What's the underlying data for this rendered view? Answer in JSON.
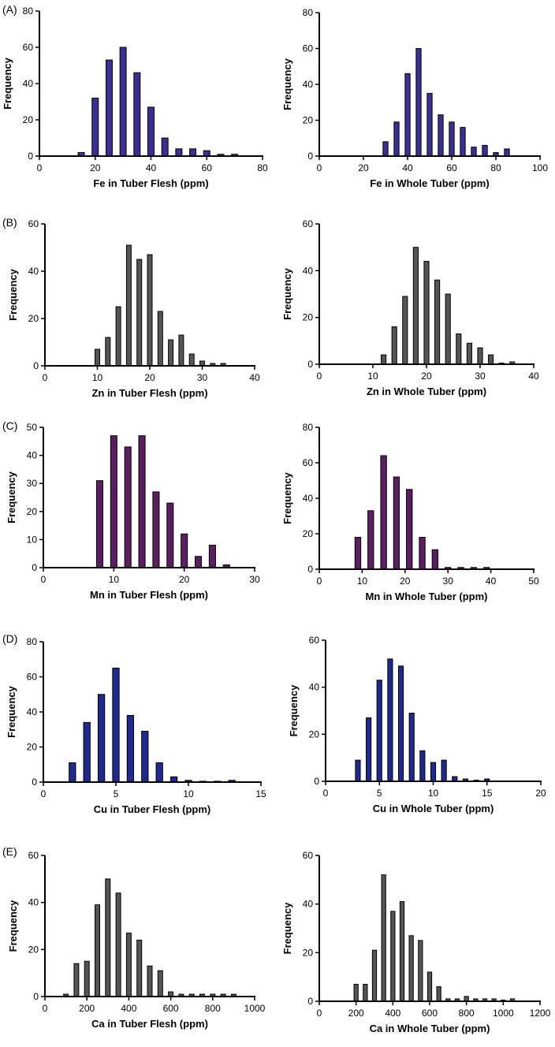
{
  "panel_labels": [
    "(A)",
    "(B)",
    "(C)",
    "(D)",
    "(E)"
  ],
  "colors": {
    "purple_blue": "#3b2f8f",
    "gray": "#555555",
    "purple": "#5a1f5e",
    "blue": "#1f2a8c",
    "axis": "#000000"
  },
  "chart_data": [
    {
      "type": "bar",
      "title": "",
      "xlabel": "Fe in Tuber Flesh (ppm)",
      "ylabel": "Frequency",
      "xlim": [
        0,
        80
      ],
      "ylim": [
        0,
        80
      ],
      "xticks": [
        0,
        20,
        40,
        60,
        80
      ],
      "yticks": [
        0,
        20,
        40,
        60,
        80
      ],
      "bin_width": 5,
      "color": "#3b2f8f",
      "x": [
        15,
        20,
        25,
        30,
        35,
        40,
        45,
        50,
        55,
        60,
        65,
        70
      ],
      "values": [
        2,
        32,
        53,
        60,
        46,
        27,
        10,
        4,
        4,
        3,
        1,
        1
      ]
    },
    {
      "type": "bar",
      "title": "",
      "xlabel": "Fe in Whole Tuber (ppm)",
      "ylabel": "Frequency",
      "xlim": [
        0,
        100
      ],
      "ylim": [
        0,
        80
      ],
      "xticks": [
        0,
        20,
        40,
        60,
        80,
        100
      ],
      "yticks": [
        0,
        20,
        40,
        60,
        80
      ],
      "bin_width": 5,
      "color": "#3b2f8f",
      "x": [
        30,
        35,
        40,
        45,
        50,
        55,
        60,
        65,
        70,
        75,
        80,
        85
      ],
      "values": [
        8,
        19,
        46,
        60,
        35,
        23,
        19,
        16,
        5,
        6,
        2,
        4
      ]
    },
    {
      "type": "bar",
      "title": "",
      "xlabel": "Zn in Tuber Flesh (ppm)",
      "ylabel": "Frequency",
      "xlim": [
        0,
        40
      ],
      "ylim": [
        0,
        60
      ],
      "xticks": [
        0,
        10,
        20,
        30,
        40
      ],
      "yticks": [
        0,
        20,
        40,
        60
      ],
      "bin_width": 2,
      "color": "#555555",
      "x": [
        10,
        12,
        14,
        16,
        18,
        20,
        22,
        24,
        26,
        28,
        30,
        32,
        34
      ],
      "values": [
        7,
        12,
        25,
        51,
        45,
        47,
        23,
        11,
        13,
        5,
        2,
        1,
        1
      ]
    },
    {
      "type": "bar",
      "title": "",
      "xlabel": "Zn in Whole Tuber (ppm)",
      "ylabel": "Frequency",
      "xlim": [
        0,
        40
      ],
      "ylim": [
        0,
        60
      ],
      "xticks": [
        0,
        10,
        20,
        30,
        40
      ],
      "yticks": [
        0,
        20,
        40,
        60
      ],
      "bin_width": 2,
      "color": "#555555",
      "x": [
        12,
        14,
        16,
        18,
        20,
        22,
        24,
        26,
        28,
        30,
        32,
        34,
        36
      ],
      "values": [
        4,
        16,
        29,
        50,
        44,
        36,
        30,
        13,
        9,
        7,
        4,
        0.5,
        1
      ]
    },
    {
      "type": "bar",
      "title": "",
      "xlabel": "Mn in Tuber Flesh (ppm)",
      "ylabel": "Frequency",
      "xlim": [
        0,
        30
      ],
      "ylim": [
        0,
        50
      ],
      "xticks": [
        0,
        10,
        20,
        30
      ],
      "yticks": [
        0,
        10,
        20,
        30,
        40,
        50
      ],
      "bin_width": 2,
      "color": "#5a1f5e",
      "x": [
        8,
        10,
        12,
        14,
        16,
        18,
        20,
        22,
        24,
        26
      ],
      "values": [
        31,
        47,
        43,
        47,
        27,
        23,
        12,
        4,
        8,
        1
      ]
    },
    {
      "type": "bar",
      "title": "",
      "xlabel": "Mn in Whole Tuber (ppm)",
      "ylabel": "Frequency",
      "xlim": [
        0,
        50
      ],
      "ylim": [
        0,
        80
      ],
      "xticks": [
        0,
        10,
        20,
        30,
        40,
        50
      ],
      "yticks": [
        0,
        20,
        40,
        60,
        80
      ],
      "bin_width": 3,
      "color": "#5a1f5e",
      "x": [
        9,
        12,
        15,
        18,
        21,
        24,
        27,
        30,
        33,
        36,
        39
      ],
      "values": [
        18,
        33,
        64,
        52,
        45,
        18,
        11,
        1,
        1,
        1,
        1
      ]
    },
    {
      "type": "bar",
      "title": "",
      "xlabel": "Cu in Tuber Flesh (ppm)",
      "ylabel": "Frequency",
      "xlim": [
        0,
        15
      ],
      "ylim": [
        0,
        80
      ],
      "xticks": [
        0,
        5,
        10,
        15
      ],
      "yticks": [
        0,
        20,
        40,
        60,
        80
      ],
      "bin_width": 1,
      "color": "#1f2a8c",
      "x": [
        2,
        3,
        4,
        5,
        6,
        7,
        8,
        9,
        10,
        11,
        12,
        13
      ],
      "values": [
        11,
        34,
        50,
        65,
        38,
        29,
        11,
        3,
        1,
        0.5,
        0.5,
        1
      ]
    },
    {
      "type": "bar",
      "title": "",
      "xlabel": "Cu in Whole Tuber (ppm)",
      "ylabel": "Frequency",
      "xlim": [
        0,
        20
      ],
      "ylim": [
        0,
        60
      ],
      "xticks": [
        0,
        5,
        10,
        15,
        20
      ],
      "yticks": [
        0,
        20,
        40,
        60
      ],
      "bin_width": 1,
      "color": "#1f2a8c",
      "x": [
        3,
        4,
        5,
        6,
        7,
        8,
        9,
        10,
        11,
        12,
        13,
        14,
        15
      ],
      "values": [
        9,
        27,
        43,
        52,
        49,
        29,
        13,
        8,
        9,
        2,
        1,
        0.5,
        1
      ]
    },
    {
      "type": "bar",
      "title": "",
      "xlabel": "Ca in Tuber Flesh (ppm)",
      "ylabel": "Frequency",
      "xlim": [
        0,
        1000
      ],
      "ylim": [
        0,
        60
      ],
      "xticks": [
        0,
        200,
        400,
        600,
        800,
        1000
      ],
      "yticks": [
        0,
        20,
        40,
        60
      ],
      "bin_width": 50,
      "color": "#555555",
      "x": [
        100,
        150,
        200,
        250,
        300,
        350,
        400,
        450,
        500,
        550,
        600,
        650,
        700,
        750,
        800,
        850,
        900
      ],
      "values": [
        1,
        14,
        15,
        39,
        50,
        44,
        27,
        24,
        13,
        11,
        2,
        1,
        1,
        1,
        1,
        1,
        1
      ]
    },
    {
      "type": "bar",
      "title": "",
      "xlabel": "Ca in Whole Tuber (ppm)",
      "ylabel": "Frequency",
      "xlim": [
        0,
        1200
      ],
      "ylim": [
        0,
        60
      ],
      "xticks": [
        0,
        200,
        400,
        600,
        800,
        1000,
        1200
      ],
      "yticks": [
        0,
        20,
        40,
        60
      ],
      "bin_width": 50,
      "color": "#555555",
      "x": [
        200,
        250,
        300,
        350,
        400,
        450,
        500,
        550,
        600,
        650,
        700,
        750,
        800,
        850,
        900,
        950,
        1000,
        1050
      ],
      "values": [
        7,
        7,
        21,
        52,
        37,
        41,
        27,
        25,
        12,
        6,
        1,
        1,
        2,
        1,
        1,
        1,
        0.5,
        1
      ]
    }
  ]
}
